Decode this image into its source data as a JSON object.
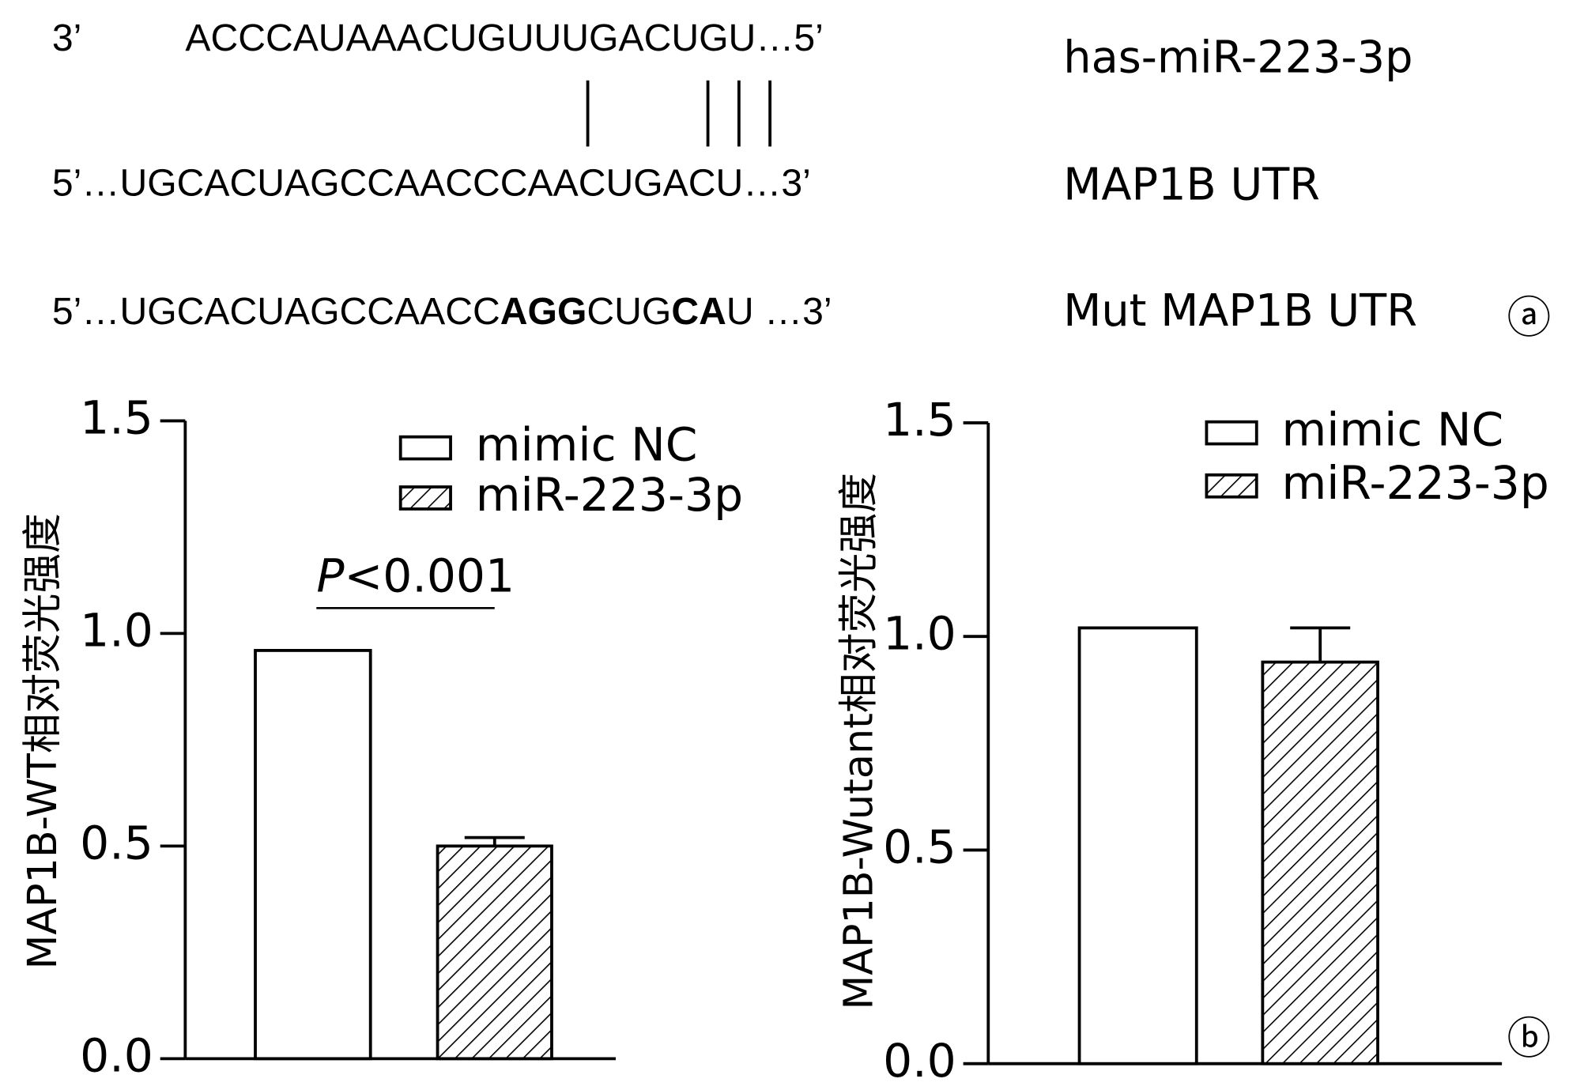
{
  "sequence_panel": {
    "rows": [
      {
        "prefix": "3’",
        "segments": [
          {
            "text": "ACCCAUAAACUGUUUGACUGU…5’",
            "bold": false
          }
        ],
        "label": "has-miR-223-3p"
      },
      {
        "segments": [
          {
            "text": "5’…UGCACUAGCCAACCCAACUGACU…3’",
            "bold": false
          }
        ],
        "label": "MAP1B UTR"
      },
      {
        "segments": [
          {
            "text": "5’…UGCACUAGCCAACC",
            "bold": false
          },
          {
            "text": "AGG",
            "bold": true
          },
          {
            "text": "CUG",
            "bold": false
          },
          {
            "text": "CA",
            "bold": true
          },
          {
            "text": "U …3’",
            "bold": false
          }
        ],
        "label": "Mut MAP1B UTR"
      }
    ],
    "panel_label": "ⓐ"
  },
  "chart_data": [
    {
      "type": "bar",
      "ylabel": "MAP1B-WT相对荧光强度",
      "ylim": [
        0,
        1.5
      ],
      "yticks": [
        {
          "value": 0,
          "label": "0.0"
        },
        0.5,
        {
          "value": 1,
          "label": "1.0"
        },
        1.5
      ],
      "series": [
        {
          "name": "mimic NC",
          "color": "#000000",
          "pattern": "none",
          "values": [
            0.96
          ]
        },
        {
          "name": "miR-223-3p",
          "color": "#000000",
          "pattern": "hatch",
          "values": [
            0.5
          ],
          "errors": [
            0.02
          ]
        }
      ],
      "annotation_parts": [
        "P",
        "<0.001"
      ]
    },
    {
      "type": "bar",
      "ylabel": "MAP1B-Wutant相对荧光强度",
      "ylim": [
        0,
        1.5
      ],
      "yticks": [
        {
          "value": 0,
          "label": "0.0"
        },
        0.5,
        {
          "value": 1,
          "label": "1.0"
        },
        1.5
      ],
      "series": [
        {
          "name": "mimic NC",
          "color": "#000000",
          "pattern": "none",
          "values": [
            1.02
          ]
        },
        {
          "name": "miR-223-3p",
          "color": "#000000",
          "pattern": "hatch",
          "values": [
            0.94
          ],
          "errors": [
            0.08
          ]
        }
      ],
      "panel_label": "ⓑ"
    }
  ]
}
